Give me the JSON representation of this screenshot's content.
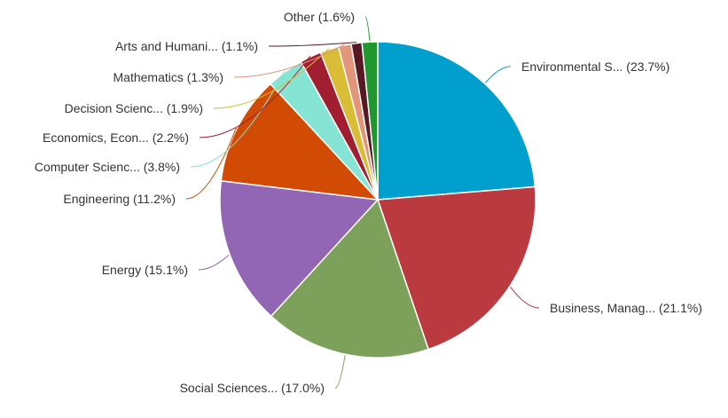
{
  "chart_data": {
    "type": "pie",
    "title": "",
    "start_angle_deg": 0,
    "direction": "clockwise",
    "legend": "none",
    "slices": [
      {
        "label": "Environmental S... (23.7%)",
        "value": 23.7,
        "color": "#009fcd"
      },
      {
        "label": "Business, Manag... (21.1%)",
        "value": 21.1,
        "color": "#ba3a3f"
      },
      {
        "label": "Social Sciences... (17.0%)",
        "value": 17.0,
        "color": "#7da05a"
      },
      {
        "label": "Energy (15.1%)",
        "value": 15.1,
        "color": "#9366b5"
      },
      {
        "label": "Engineering (11.2%)",
        "value": 11.2,
        "color": "#d14b05"
      },
      {
        "label": "Computer Scienc... (3.8%)",
        "value": 3.8,
        "color": "#85e4d3"
      },
      {
        "label": "Economics, Econ... (2.2%)",
        "value": 2.2,
        "color": "#a11e31"
      },
      {
        "label": "Decision Scienc... (1.9%)",
        "value": 1.9,
        "color": "#d9bd37"
      },
      {
        "label": "Mathematics (1.3%)",
        "value": 1.3,
        "color": "#e2957b"
      },
      {
        "label": "Arts and Humani... (1.1%)",
        "value": 1.1,
        "color": "#561923"
      },
      {
        "label": "Other (1.6%)",
        "value": 1.6,
        "color": "#21982f"
      }
    ]
  }
}
